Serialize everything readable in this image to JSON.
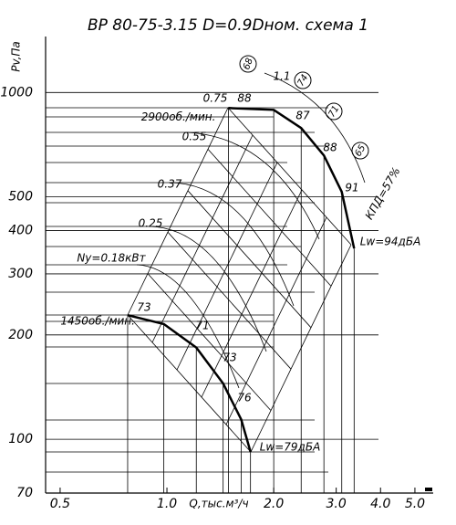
{
  "chart_data": {
    "type": "line",
    "title": "ВР 80-75-3.15  D=0.9Dном.  схема 1",
    "x_label": "Q,тыс.м³/ч",
    "y_label": "Pv,Па",
    "log_x": true,
    "log_y": true,
    "grid": true,
    "xlim": [
      0.455,
      5.63
    ],
    "ylim": [
      70,
      1450
    ],
    "xticks": [
      0.5,
      {
        "value": 1,
        "label": "1.0"
      },
      {
        "value": 2,
        "label": "2.0"
      },
      {
        "value": 3,
        "label": "3.0"
      },
      {
        "value": 4,
        "label": "4.0"
      },
      {
        "value": 5,
        "label": "5.0"
      }
    ],
    "yticks": [
      70,
      100,
      200,
      300,
      400,
      500,
      1000
    ],
    "series": [
      {
        "name": "2900об./мин.",
        "color": "#000000",
        "x": [
          1.49,
          2.0,
          2.39,
          2.77,
          3.11,
          3.37
        ],
        "values": [
          902,
          891,
          790,
          658,
          517,
          355
        ]
      },
      {
        "name": "1450об./мин.",
        "color": "#000000",
        "x": [
          0.775,
          0.98,
          1.21,
          1.44,
          1.62,
          1.72
        ],
        "values": [
          228,
          215,
          184,
          145,
          114,
          92
        ]
      }
    ],
    "annotations": [
      "68",
      "0.75",
      "88",
      "1.1",
      "74",
      "71",
      "65",
      "87",
      "88",
      "91",
      "КПД=57%",
      "0.55",
      "0.37",
      "0.25",
      "Ny=0.18кВт",
      "73",
      "71",
      "73",
      "76",
      "Lw=94дБА",
      "Lw=79дБА"
    ]
  }
}
